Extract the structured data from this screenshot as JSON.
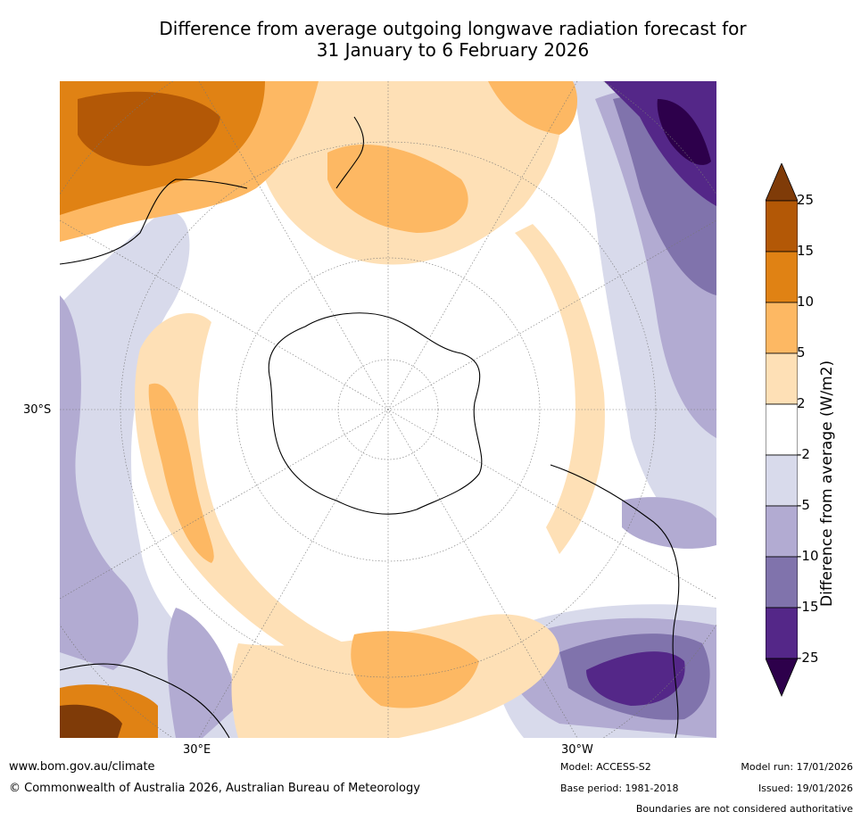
{
  "title": {
    "line1": "Difference from average outgoing longwave radiation forecast for",
    "line2": "31 January to 6 February 2026"
  },
  "map": {
    "projection": "south-polar stereographic",
    "lat_label": "30°S",
    "lon_labels": [
      "30°E",
      "30°W"
    ]
  },
  "colorbar": {
    "title": "Difference from average (W/m2)",
    "ticks": [
      "25",
      "15",
      "10",
      "5",
      "2",
      "-2",
      "-5",
      "-10",
      "-15",
      "-25"
    ],
    "colors": [
      "#7f3b08",
      "#b35806",
      "#e08214",
      "#fdb863",
      "#fee0b6",
      "#ffffff",
      "#d8daeb",
      "#b2abd2",
      "#8073ac",
      "#542788",
      "#2d004b"
    ]
  },
  "footer": {
    "website": "www.bom.gov.au/climate",
    "copyright": "© Commonwealth of Australia 2026, Australian Bureau of Meteorology",
    "model": "Model: ACCESS-S2",
    "base_period": "Base period: 1981-2018",
    "model_run": "Model run: 17/01/2026",
    "issued": "Issued: 19/01/2026",
    "disclaimer": "Boundaries are not considered authoritative"
  }
}
